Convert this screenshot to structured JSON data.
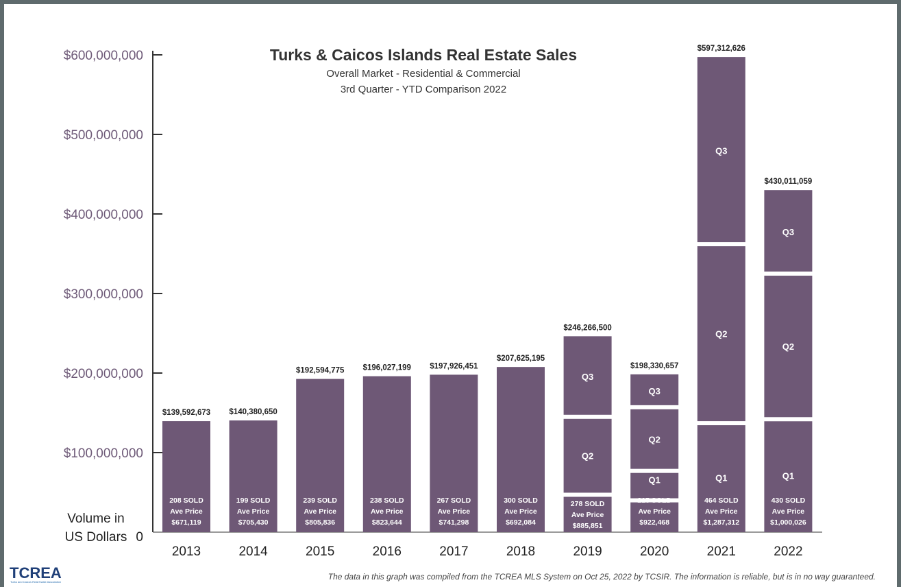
{
  "chart_data": {
    "type": "bar",
    "title": "Turks & Caicos Islands Real Estate Sales",
    "subtitle": "Overall Market - Residential & Commercial",
    "subtitle2": "3rd Quarter - YTD Comparison 2022",
    "ylabel_line1": "Volume in",
    "ylabel_line2": "US Dollars",
    "ylim": [
      0,
      600000000
    ],
    "yticks": [
      {
        "value": 0,
        "label": "0"
      },
      {
        "value": 100000000,
        "label": "$100,000,000"
      },
      {
        "value": 200000000,
        "label": "$200,000,000"
      },
      {
        "value": 300000000,
        "label": "$300,000,000"
      },
      {
        "value": 400000000,
        "label": "$400,000,000"
      },
      {
        "value": 500000000,
        "label": "$500,000,000"
      },
      {
        "value": 600000000,
        "label": "$600,000,000"
      }
    ],
    "grid": false,
    "legend": "none",
    "bar_color": "#6e5876",
    "categories": [
      "2013",
      "2014",
      "2015",
      "2016",
      "2017",
      "2018",
      "2019",
      "2020",
      "2021",
      "2022"
    ],
    "values": [
      139592673,
      140380650,
      192594775,
      196027199,
      197926451,
      207625195,
      246266500,
      198330657,
      597312626,
      430011059
    ],
    "total_labels": [
      "$139,592,673",
      "$140,380,650",
      "$192,594,775",
      "$196,027,199",
      "$197,926,451",
      "$207,625,195",
      "$246,266,500",
      "$198,330,657",
      "$597,312,626",
      "$430,011,059"
    ],
    "sold": [
      "208 SOLD",
      "199 SOLD",
      "239 SOLD",
      "238 SOLD",
      "267 SOLD",
      "300 SOLD",
      "278 SOLD",
      "215 SOLD",
      "464 SOLD",
      "430 SOLD"
    ],
    "ave_price_label": "Ave Price",
    "ave_price": [
      "$671,119",
      "$705,430",
      "$805,836",
      "$823,644",
      "$741,298",
      "$692,084",
      "$885,851",
      "$922,468",
      "$1,287,312",
      "$1,000,026"
    ],
    "quarter_breakdown": [
      {
        "year": "2019",
        "segments": [
          {
            "label": "",
            "from": 0,
            "to": 47000000
          },
          {
            "label": "Q2",
            "from": 47000000,
            "to": 145000000
          },
          {
            "label": "Q3",
            "from": 145000000,
            "to": 246266500
          }
        ]
      },
      {
        "year": "2020",
        "segments": [
          {
            "label": "",
            "from": 0,
            "to": 40000000
          },
          {
            "label": "Q1",
            "from": 40000000,
            "to": 77000000
          },
          {
            "label": "Q2",
            "from": 77000000,
            "to": 157000000
          },
          {
            "label": "Q3",
            "from": 157000000,
            "to": 198330657
          }
        ]
      },
      {
        "year": "2021",
        "segments": [
          {
            "label": "Q1",
            "from": 0,
            "to": 137000000
          },
          {
            "label": "Q2",
            "from": 137000000,
            "to": 362000000
          },
          {
            "label": "Q3",
            "from": 362000000,
            "to": 597312626
          }
        ]
      },
      {
        "year": "2022",
        "segments": [
          {
            "label": "Q1",
            "from": 0,
            "to": 142000000
          },
          {
            "label": "Q2",
            "from": 142000000,
            "to": 325000000
          },
          {
            "label": "Q3",
            "from": 325000000,
            "to": 430011059
          }
        ]
      }
    ]
  },
  "footer": {
    "logo": "TCREA",
    "logo_tagline": "Turks and Caicos Real Estate Association",
    "disclaimer": "The data in this graph was compiled from the TCREA MLS System on Oct 25, 2022 by TCSIR.  The information is reliable, but is in no way guaranteed."
  }
}
